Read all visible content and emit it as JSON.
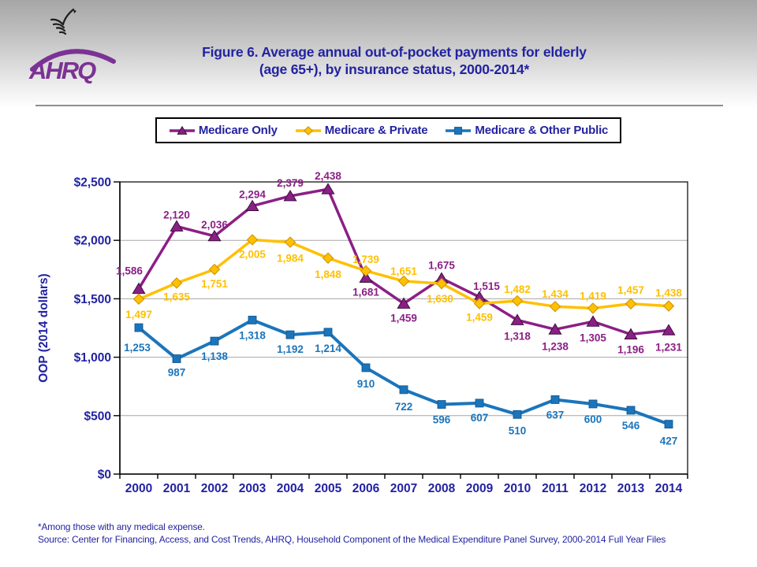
{
  "header": {
    "title_line1": "Figure 6. Average annual out-of-pocket payments for elderly",
    "title_line2": "(age 65+), by insurance status, 2000-2014*",
    "logo_text": "AHRQ"
  },
  "colors": {
    "navy_text": "#2222A2",
    "logo_purple": "#7B3294",
    "gridline": "#A6A6A6",
    "axis": "#000000"
  },
  "chart_data": {
    "type": "line",
    "title": "",
    "xlabel": "",
    "ylabel": "OOP (2014 dollars)",
    "ylim": [
      0,
      2500
    ],
    "ytick_step": 500,
    "ytick_labels": [
      "$0",
      "$500",
      "$1,000",
      "$1,500",
      "$2,000",
      "$2,500"
    ],
    "grid": "horizontal",
    "legend_position": "top",
    "categories": [
      "2000",
      "2001",
      "2002",
      "2003",
      "2004",
      "2005",
      "2006",
      "2007",
      "2008",
      "2009",
      "2010",
      "2011",
      "2012",
      "2013",
      "2014"
    ],
    "series": [
      {
        "name": "Medicare Only",
        "color": "#8B1F86",
        "marker": "triangle",
        "marker_edge": "#3A103A",
        "marker_size": 7,
        "line_width": 3.5,
        "values": [
          1586,
          2120,
          2036,
          2294,
          2379,
          2438,
          1681,
          1459,
          1675,
          1515,
          1318,
          1238,
          1305,
          1196,
          1231
        ],
        "labels": [
          "1,586",
          "2,120",
          "2,036",
          "2,294",
          "2,379",
          "2,438",
          "1,681",
          "1,459",
          "1,675",
          "1,515",
          "1,318",
          "1,238",
          "1,305",
          "1,196",
          "1,231"
        ],
        "label_offsets": [
          [
            -12,
            -18
          ],
          [
            0,
            -10
          ],
          [
            0,
            -10
          ],
          [
            0,
            -10
          ],
          [
            0,
            -12
          ],
          [
            0,
            -12
          ],
          [
            0,
            23
          ],
          [
            0,
            23
          ],
          [
            0,
            -12
          ],
          [
            9,
            -9
          ],
          [
            0,
            25
          ],
          [
            0,
            26
          ],
          [
            0,
            25
          ],
          [
            0,
            24
          ],
          [
            0,
            26
          ]
        ]
      },
      {
        "name": "Medicare & Private",
        "color": "#FFC000",
        "marker": "diamond",
        "marker_edge": "#C98F00",
        "marker_size": 6.5,
        "line_width": 3.5,
        "values": [
          1497,
          1635,
          1751,
          2005,
          1984,
          1848,
          1739,
          1651,
          1630,
          1459,
          1482,
          1434,
          1419,
          1457,
          1438
        ],
        "labels": [
          "1,497",
          "1,635",
          "1,751",
          "2,005",
          "1,984",
          "1,848",
          "1,739",
          "1,651",
          "1,630",
          "1,459",
          "1,482",
          "1,434",
          "1,419",
          "1,457",
          "1,438"
        ],
        "label_offsets": [
          [
            0,
            24
          ],
          [
            0,
            22
          ],
          [
            0,
            23
          ],
          [
            0,
            23
          ],
          [
            0,
            25
          ],
          [
            0,
            25
          ],
          [
            0,
            -10
          ],
          [
            0,
            -8
          ],
          [
            -2,
            24
          ],
          [
            0,
            22
          ],
          [
            0,
            -10
          ],
          [
            0,
            -11
          ],
          [
            0,
            -11
          ],
          [
            0,
            -13
          ],
          [
            0,
            -12
          ]
        ]
      },
      {
        "name": "Medicare & Other Public",
        "color": "#1B75BC",
        "marker": "square",
        "marker_edge": "#145C93",
        "marker_size": 5.8,
        "line_width": 4,
        "values": [
          1253,
          987,
          1138,
          1318,
          1192,
          1214,
          910,
          722,
          596,
          607,
          510,
          637,
          600,
          546,
          427
        ],
        "labels": [
          "1,253",
          "987",
          "1,138",
          "1,318",
          "1,192",
          "1,214",
          "910",
          "722",
          "596",
          "607",
          "510",
          "637",
          "600",
          "546",
          "427"
        ],
        "label_offsets": [
          [
            -2,
            30
          ],
          [
            0,
            22
          ],
          [
            0,
            24
          ],
          [
            0,
            24
          ],
          [
            0,
            23
          ],
          [
            0,
            25
          ],
          [
            0,
            25
          ],
          [
            0,
            26
          ],
          [
            0,
            24
          ],
          [
            0,
            23
          ],
          [
            0,
            25
          ],
          [
            0,
            24
          ],
          [
            0,
            24
          ],
          [
            0,
            24
          ],
          [
            0,
            26
          ]
        ]
      }
    ]
  },
  "footer": {
    "note": "*Among those with any medical expense.",
    "source": "Source: Center for Financing, Access, and Cost Trends, AHRQ, Household Component of the Medical Expenditure Panel Survey,  2000-2014 Full Year Files"
  }
}
